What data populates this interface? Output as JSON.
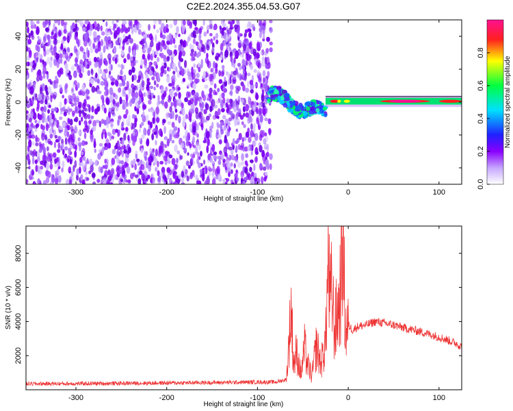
{
  "title": "C2E2.2024.355.04.53.G07",
  "chart_data": [
    {
      "type": "heatmap",
      "xlabel": "Height of straight line (km)",
      "ylabel": "Frequency (Hz)",
      "xlim": [
        -355,
        125
      ],
      "ylim": [
        -50,
        50
      ],
      "xticks": [
        -300,
        -200,
        -100,
        0,
        100
      ],
      "yticks": [
        -40,
        -20,
        0,
        20,
        40
      ],
      "colorbar": {
        "label": "Normalized spectral amplitude",
        "range": [
          0,
          1
        ],
        "ticks": [
          "0.0",
          "0.2",
          "0.4",
          "0.6",
          "0.8"
        ],
        "colors": [
          "#ffffff",
          "#8a00ff",
          "#2020ff",
          "#00e0ff",
          "#00ff40",
          "#ffff00",
          "#ff2020",
          "#ff1090"
        ]
      },
      "regions": [
        {
          "x": [
            -355,
            -85
          ],
          "freq_hz": [
            -50,
            50
          ],
          "amplitude": 0.15
        },
        {
          "x": [
            -88,
            -25
          ],
          "freq_hz": [
            -15,
            10
          ],
          "amplitude": 0.45
        },
        {
          "x": [
            -25,
            125
          ],
          "freq_hz": [
            -2,
            3
          ],
          "amplitude": 0.7
        }
      ],
      "grid": false
    },
    {
      "type": "line",
      "xlabel": "Height of straight line (km)",
      "ylabel": "SNR (10 * v/v)",
      "xlim": [
        -355,
        125
      ],
      "ylim": [
        0,
        9600
      ],
      "xticks": [
        -300,
        -200,
        -100,
        0,
        100
      ],
      "yticks": [
        2000,
        4000,
        6000,
        8000
      ],
      "series": [
        {
          "color": "#ee3333",
          "x": [
            -355,
            -300,
            -250,
            -200,
            -150,
            -100,
            -80,
            -68,
            -63,
            -60,
            -57,
            -52,
            -48,
            -45,
            -40,
            -35,
            -30,
            -25,
            -22,
            -20,
            -18,
            -15,
            -12,
            -10,
            -8,
            -6,
            -5,
            -3,
            0,
            5,
            10,
            20,
            30,
            40,
            50,
            60,
            80,
            100,
            110,
            120,
            125
          ],
          "y": [
            350,
            360,
            380,
            400,
            420,
            450,
            450,
            600,
            4800,
            1500,
            2200,
            900,
            2500,
            1500,
            800,
            2600,
            1500,
            2800,
            7500,
            5000,
            5800,
            3500,
            4500,
            5000,
            6500,
            9500,
            7000,
            3500,
            3800,
            3500,
            3700,
            3800,
            4000,
            3900,
            3800,
            3650,
            3400,
            3100,
            2900,
            2700,
            2500
          ]
        }
      ],
      "grid": false
    }
  ]
}
